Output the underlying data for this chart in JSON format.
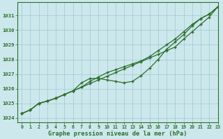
{
  "title": "Graphe pression niveau de la mer (hPa)",
  "background_color": "#cce8ec",
  "grid_color": "#9fc8cf",
  "line_color": "#2d6e2d",
  "xlim": [
    -0.5,
    23
  ],
  "ylim": [
    1023.7,
    1031.9
  ],
  "yticks": [
    1024,
    1025,
    1026,
    1027,
    1028,
    1029,
    1030,
    1031
  ],
  "xticks": [
    0,
    1,
    2,
    3,
    4,
    5,
    6,
    7,
    8,
    9,
    10,
    11,
    12,
    13,
    14,
    15,
    16,
    17,
    18,
    19,
    20,
    21,
    22,
    23
  ],
  "series_straight": [
    1024.3,
    1024.55,
    1025.0,
    1025.15,
    1025.35,
    1025.6,
    1025.85,
    1026.1,
    1026.35,
    1026.6,
    1026.85,
    1027.1,
    1027.35,
    1027.6,
    1027.85,
    1028.1,
    1028.35,
    1028.6,
    1028.85,
    1029.4,
    1029.9,
    1030.4,
    1030.9,
    1031.6
  ],
  "series_upper": [
    1024.3,
    1024.55,
    1025.0,
    1025.15,
    1025.35,
    1025.6,
    1025.85,
    1026.1,
    1026.5,
    1026.8,
    1027.1,
    1027.3,
    1027.5,
    1027.7,
    1027.9,
    1028.2,
    1028.6,
    1029.0,
    1029.4,
    1029.9,
    1030.4,
    1030.8,
    1031.1,
    1031.6
  ],
  "series_dip": [
    1024.3,
    1024.55,
    1025.0,
    1025.15,
    1025.35,
    1025.6,
    1025.85,
    1026.4,
    1026.7,
    1026.7,
    1026.6,
    1026.5,
    1026.4,
    1026.5,
    1026.9,
    1027.4,
    1028.0,
    1028.7,
    1029.2,
    1029.7,
    1030.3,
    1030.8,
    1031.1,
    1031.6
  ]
}
